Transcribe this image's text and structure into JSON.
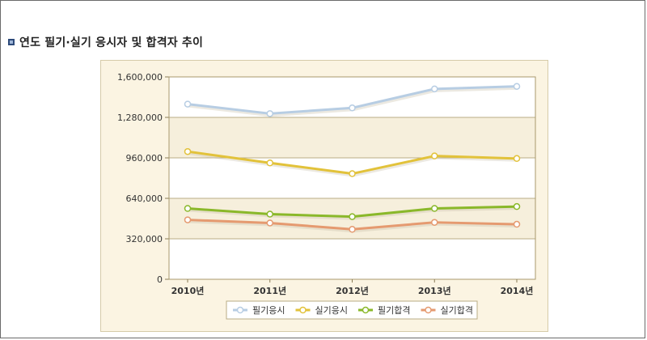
{
  "page": {
    "section_title": "연도 필기·실기 응시자 및 합격자 추이",
    "bullet_icon": "square-bullet-icon"
  },
  "chart_data": {
    "type": "line",
    "title": "",
    "xlabel": "",
    "ylabel": "",
    "categories": [
      "2010년",
      "2011년",
      "2012년",
      "2013년",
      "2014년"
    ],
    "ylim": [
      0,
      1600000
    ],
    "yticks": [
      0,
      320000,
      640000,
      960000,
      1280000,
      1600000
    ],
    "ytick_labels": [
      "0",
      "320,000",
      "640,000",
      "960,000",
      "1,280,000",
      "1,600,000"
    ],
    "grid": true,
    "legend_position": "bottom-center",
    "series": [
      {
        "name": "필기응시",
        "color": "#b7cde3",
        "values": [
          1385000,
          1310000,
          1355000,
          1505000,
          1525000
        ]
      },
      {
        "name": "실기응시",
        "color": "#e2c23a",
        "values": [
          1010000,
          920000,
          835000,
          975000,
          955000
        ]
      },
      {
        "name": "필기합격",
        "color": "#8ab82a",
        "values": [
          560000,
          515000,
          495000,
          560000,
          575000
        ]
      },
      {
        "name": "실기합격",
        "color": "#e59a70",
        "values": [
          470000,
          445000,
          395000,
          450000,
          435000
        ]
      }
    ]
  }
}
